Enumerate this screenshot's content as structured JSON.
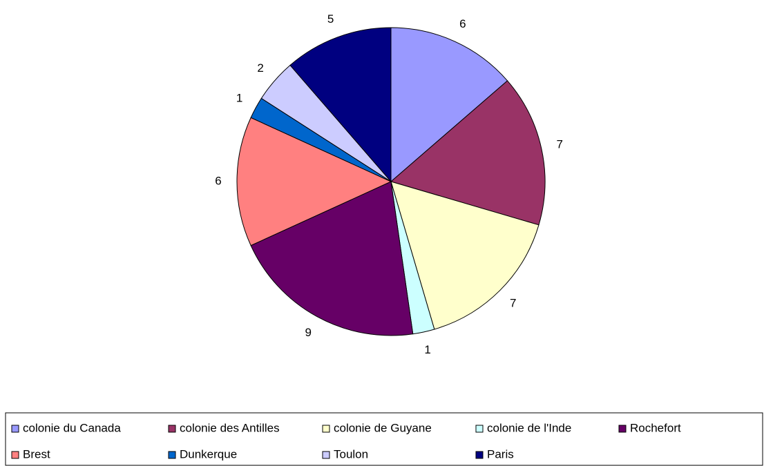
{
  "chart_data": {
    "type": "pie",
    "categories": [
      "colonie du Canada",
      "colonie des Antilles",
      "colonie de Guyane",
      "colonie de l'Inde",
      "Rochefort",
      "Brest",
      "Dunkerque",
      "Toulon",
      "Paris"
    ],
    "values": [
      6,
      7,
      7,
      1,
      9,
      6,
      1,
      2,
      5
    ],
    "colors": [
      "#9999ff",
      "#993366",
      "#ffffcc",
      "#ccffff",
      "#660066",
      "#ff8080",
      "#0066cc",
      "#ccccff",
      "#000080"
    ],
    "legend": "bottom"
  }
}
